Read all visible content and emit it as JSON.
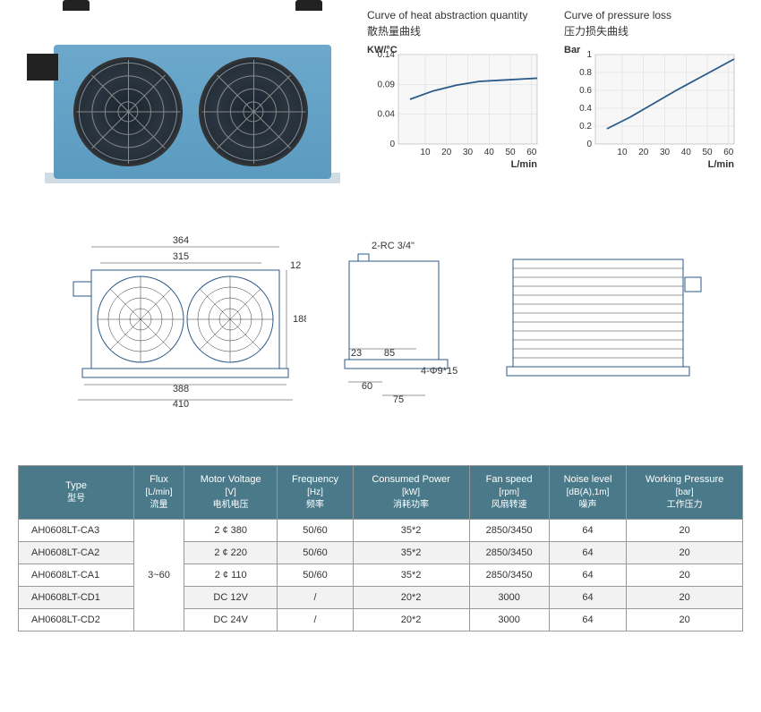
{
  "chart1": {
    "title_en": "Curve of heat abstraction quantity",
    "title_cn": "散热量曲线",
    "y_unit": "KW/°C",
    "x_unit": "L/min",
    "y_ticks": [
      "0",
      "0.04",
      "0.09",
      "0.14"
    ],
    "x_ticks": [
      "10",
      "20",
      "30",
      "40",
      "50",
      "60"
    ],
    "grid_color": "#d8d8d8",
    "line_color": "#2a5a8a",
    "bg_color": "#f7f7f7",
    "points": [
      [
        5,
        0.07
      ],
      [
        15,
        0.083
      ],
      [
        25,
        0.092
      ],
      [
        35,
        0.098
      ],
      [
        45,
        0.1
      ],
      [
        55,
        0.102
      ],
      [
        60,
        0.103
      ]
    ]
  },
  "chart2": {
    "title_en": "Curve of pressure loss",
    "title_cn": "压力损失曲线",
    "y_unit": "Bar",
    "x_unit": "L/min",
    "y_ticks": [
      "0",
      "0.2",
      "0.4",
      "0.6",
      "0.8",
      "1"
    ],
    "x_ticks": [
      "10",
      "20",
      "30",
      "40",
      "50",
      "60"
    ],
    "grid_color": "#d8d8d8",
    "line_color": "#2a5a8a",
    "bg_color": "#f7f7f7",
    "points": [
      [
        5,
        0.17
      ],
      [
        15,
        0.3
      ],
      [
        25,
        0.45
      ],
      [
        35,
        0.6
      ],
      [
        45,
        0.74
      ],
      [
        55,
        0.88
      ],
      [
        60,
        0.95
      ]
    ]
  },
  "diagram_front": {
    "w_top": "364",
    "w_inner": "315",
    "h_notch": "12",
    "h_body": "188",
    "w_base": "388",
    "w_total": "410"
  },
  "diagram_side": {
    "port_label": "2-RC 3/4\"",
    "d1": "23",
    "d2": "85",
    "hole": "4-Φ9*15",
    "d3": "60",
    "d4": "75"
  },
  "table": {
    "headers": [
      {
        "en": "Type",
        "cn": "型号"
      },
      {
        "en": "Flux",
        "unit": "[L/min]",
        "cn": "流量"
      },
      {
        "en": "Motor Voltage",
        "unit": "[V]",
        "cn": "电机电压"
      },
      {
        "en": "Frequency",
        "unit": "[Hz]",
        "cn": "频率"
      },
      {
        "en": "Consumed Power",
        "unit": "[kW]",
        "cn": "消耗功率"
      },
      {
        "en": "Fan speed",
        "unit": "[rpm]",
        "cn": "风扇转速"
      },
      {
        "en": "Noise level",
        "unit": "[dB(A),1m]",
        "cn": "噪声"
      },
      {
        "en": "Working Pressure",
        "unit": "[bar]",
        "cn": "工作压力"
      }
    ],
    "flux": "3~60",
    "rows": [
      {
        "type": "AH0608LT-CA3",
        "voltage": "2 ¢ 380",
        "freq": "50/60",
        "power": "35*2",
        "speed": "2850/3450",
        "noise": "64",
        "pressure": "20"
      },
      {
        "type": "AH0608LT-CA2",
        "voltage": "2 ¢ 220",
        "freq": "50/60",
        "power": "35*2",
        "speed": "2850/3450",
        "noise": "64",
        "pressure": "20"
      },
      {
        "type": "AH0608LT-CA1",
        "voltage": "2 ¢ 110",
        "freq": "50/60",
        "power": "35*2",
        "speed": "2850/3450",
        "noise": "64",
        "pressure": "20"
      },
      {
        "type": "AH0608LT-CD1",
        "voltage": "DC 12V",
        "freq": "/",
        "power": "20*2",
        "speed": "3000",
        "noise": "64",
        "pressure": "20"
      },
      {
        "type": "AH0608LT-CD2",
        "voltage": "DC 24V",
        "freq": "/",
        "power": "20*2",
        "speed": "3000",
        "noise": "64",
        "pressure": "20"
      }
    ]
  }
}
